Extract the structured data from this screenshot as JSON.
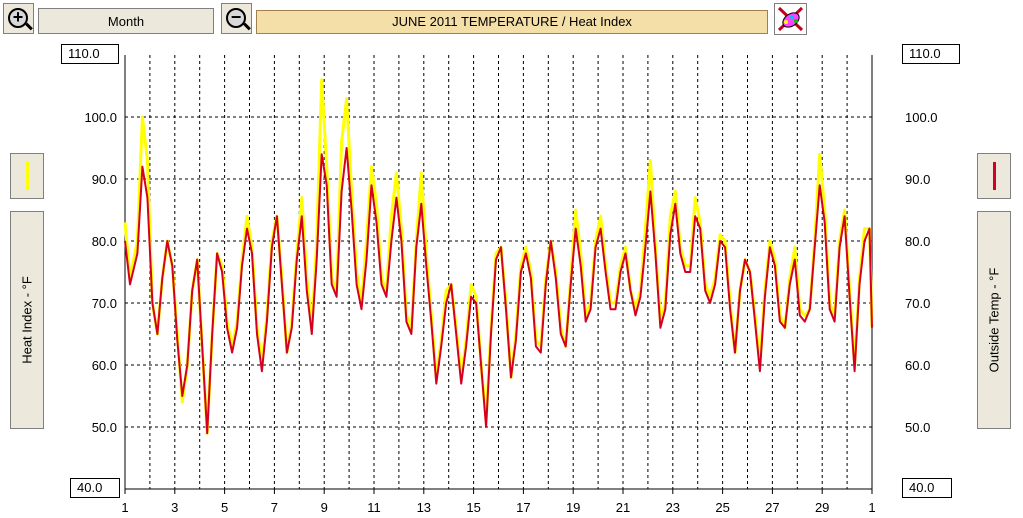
{
  "toolbar": {
    "zoom_in_icon": "magnifier-plus-icon",
    "zoom_out_icon": "magnifier-minus-icon",
    "range_label": "Month",
    "palette_icon": "color-palette-icon"
  },
  "colors": {
    "heat_index": "#ffff00",
    "outside_temp": "#d40020",
    "title_bg": "#f5dfa8",
    "grid": "#000000"
  },
  "chart_data": {
    "type": "line",
    "title": "JUNE 2011  TEMPERATURE / Heat Index",
    "ylabel_left": "Heat Index - °F",
    "ylabel_right": "Outside Temp - °F",
    "ylim": [
      40,
      110
    ],
    "y_ticks": [
      "110.0",
      "100.0",
      "90.0",
      "80.0",
      "70.0",
      "60.0",
      "50.0",
      "40.0"
    ],
    "x_ticks": [
      "1",
      "3",
      "5",
      "7",
      "9",
      "11",
      "13",
      "15",
      "17",
      "19",
      "21",
      "23",
      "25",
      "27",
      "29",
      "1"
    ],
    "xlim": [
      1,
      31
    ],
    "grid": true,
    "series": [
      {
        "name": "Heat Index",
        "color": "#ffff00",
        "x": [
          1.0,
          1.2,
          1.5,
          1.7,
          1.9,
          2.1,
          2.3,
          2.5,
          2.7,
          2.9,
          3.1,
          3.3,
          3.5,
          3.7,
          3.9,
          4.1,
          4.3,
          4.5,
          4.7,
          4.9,
          5.1,
          5.3,
          5.5,
          5.7,
          5.9,
          6.1,
          6.3,
          6.5,
          6.7,
          6.9,
          7.1,
          7.3,
          7.5,
          7.7,
          7.9,
          8.1,
          8.3,
          8.5,
          8.7,
          8.9,
          9.1,
          9.3,
          9.5,
          9.7,
          9.9,
          10.1,
          10.3,
          10.5,
          10.7,
          10.9,
          11.1,
          11.3,
          11.5,
          11.7,
          11.9,
          12.1,
          12.3,
          12.5,
          12.7,
          12.9,
          13.1,
          13.3,
          13.5,
          13.7,
          13.9,
          14.1,
          14.3,
          14.5,
          14.7,
          14.9,
          15.1,
          15.3,
          15.5,
          15.7,
          15.9,
          16.1,
          16.3,
          16.5,
          16.7,
          16.9,
          17.1,
          17.3,
          17.5,
          17.7,
          17.9,
          18.1,
          18.3,
          18.5,
          18.7,
          18.9,
          19.1,
          19.3,
          19.5,
          19.7,
          19.9,
          20.1,
          20.3,
          20.5,
          20.7,
          20.9,
          21.1,
          21.3,
          21.5,
          21.7,
          21.9,
          22.1,
          22.3,
          22.5,
          22.7,
          22.9,
          23.1,
          23.3,
          23.5,
          23.7,
          23.9,
          24.1,
          24.3,
          24.5,
          24.7,
          24.9,
          25.1,
          25.3,
          25.5,
          25.7,
          25.9,
          26.1,
          26.3,
          26.5,
          26.7,
          26.9,
          27.1,
          27.3,
          27.5,
          27.7,
          27.9,
          28.1,
          28.3,
          28.5,
          28.7,
          28.9,
          29.1,
          29.3,
          29.5,
          29.7,
          29.9,
          30.1,
          30.3,
          30.5,
          30.7,
          30.9,
          31.0
        ],
        "y": [
          83,
          74,
          80,
          100,
          93,
          70,
          65,
          74,
          80,
          76,
          65,
          54,
          60,
          72,
          77,
          63,
          49,
          65,
          78,
          76,
          67,
          63,
          67,
          77,
          84,
          79,
          66,
          60,
          68,
          80,
          84,
          74,
          62,
          67,
          78,
          87,
          74,
          66,
          80,
          106,
          92,
          74,
          72,
          96,
          103,
          88,
          75,
          70,
          80,
          92,
          86,
          74,
          72,
          84,
          91,
          82,
          68,
          66,
          80,
          91,
          78,
          68,
          58,
          64,
          72,
          73,
          66,
          58,
          64,
          73,
          71,
          60,
          51,
          66,
          78,
          79,
          70,
          58,
          65,
          76,
          79,
          75,
          64,
          63,
          74,
          80,
          75,
          66,
          63,
          74,
          85,
          78,
          68,
          70,
          80,
          84,
          76,
          70,
          70,
          76,
          79,
          72,
          69,
          72,
          82,
          93,
          79,
          67,
          70,
          84,
          88,
          79,
          76,
          76,
          87,
          83,
          73,
          71,
          74,
          81,
          80,
          70,
          62,
          72,
          77,
          75,
          68,
          60,
          72,
          80,
          77,
          68,
          66,
          74,
          79,
          69,
          68,
          69,
          80,
          94,
          85,
          70,
          68,
          80,
          85,
          72,
          60,
          74,
          82,
          82,
          66
        ]
      },
      {
        "name": "Outside Temp",
        "color": "#d40020",
        "x": [
          1.0,
          1.2,
          1.5,
          1.7,
          1.9,
          2.1,
          2.3,
          2.5,
          2.7,
          2.9,
          3.1,
          3.3,
          3.5,
          3.7,
          3.9,
          4.1,
          4.3,
          4.5,
          4.7,
          4.9,
          5.1,
          5.3,
          5.5,
          5.7,
          5.9,
          6.1,
          6.3,
          6.5,
          6.7,
          6.9,
          7.1,
          7.3,
          7.5,
          7.7,
          7.9,
          8.1,
          8.3,
          8.5,
          8.7,
          8.9,
          9.1,
          9.3,
          9.5,
          9.7,
          9.9,
          10.1,
          10.3,
          10.5,
          10.7,
          10.9,
          11.1,
          11.3,
          11.5,
          11.7,
          11.9,
          12.1,
          12.3,
          12.5,
          12.7,
          12.9,
          13.1,
          13.3,
          13.5,
          13.7,
          13.9,
          14.1,
          14.3,
          14.5,
          14.7,
          14.9,
          15.1,
          15.3,
          15.5,
          15.7,
          15.9,
          16.1,
          16.3,
          16.5,
          16.7,
          16.9,
          17.1,
          17.3,
          17.5,
          17.7,
          17.9,
          18.1,
          18.3,
          18.5,
          18.7,
          18.9,
          19.1,
          19.3,
          19.5,
          19.7,
          19.9,
          20.1,
          20.3,
          20.5,
          20.7,
          20.9,
          21.1,
          21.3,
          21.5,
          21.7,
          21.9,
          22.1,
          22.3,
          22.5,
          22.7,
          22.9,
          23.1,
          23.3,
          23.5,
          23.7,
          23.9,
          24.1,
          24.3,
          24.5,
          24.7,
          24.9,
          25.1,
          25.3,
          25.5,
          25.7,
          25.9,
          26.1,
          26.3,
          26.5,
          26.7,
          26.9,
          27.1,
          27.3,
          27.5,
          27.7,
          27.9,
          28.1,
          28.3,
          28.5,
          28.7,
          28.9,
          29.1,
          29.3,
          29.5,
          29.7,
          29.9,
          30.1,
          30.3,
          30.5,
          30.7,
          30.9,
          31.0
        ],
        "y": [
          80,
          73,
          78,
          92,
          87,
          70,
          65,
          74,
          80,
          76,
          64,
          55,
          60,
          72,
          77,
          63,
          49,
          65,
          78,
          75,
          66,
          62,
          66,
          76,
          82,
          78,
          65,
          59,
          67,
          79,
          84,
          73,
          62,
          66,
          77,
          84,
          72,
          65,
          77,
          94,
          89,
          73,
          71,
          88,
          95,
          85,
          73,
          69,
          77,
          89,
          83,
          73,
          71,
          80,
          87,
          80,
          67,
          65,
          79,
          86,
          76,
          67,
          57,
          63,
          70,
          73,
          65,
          57,
          63,
          71,
          70,
          60,
          50,
          65,
          77,
          79,
          69,
          58,
          64,
          75,
          78,
          74,
          63,
          62,
          73,
          80,
          74,
          65,
          63,
          73,
          82,
          76,
          67,
          69,
          79,
          82,
          75,
          69,
          69,
          75,
          78,
          72,
          68,
          71,
          79,
          88,
          78,
          66,
          69,
          81,
          86,
          78,
          75,
          75,
          84,
          82,
          72,
          70,
          73,
          80,
          79,
          69,
          62,
          72,
          77,
          75,
          67,
          59,
          71,
          79,
          76,
          67,
          66,
          73,
          77,
          68,
          67,
          69,
          79,
          89,
          83,
          69,
          67,
          79,
          84,
          71,
          59,
          73,
          80,
          82,
          66
        ]
      }
    ]
  }
}
